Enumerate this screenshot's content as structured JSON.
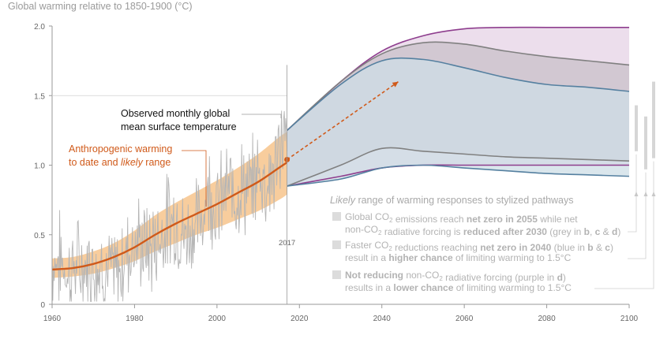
{
  "chart_data": {
    "type": "line",
    "title": "Global warming relative to 1850-1900 (°C)",
    "xlim": [
      1960,
      2100
    ],
    "ylim": [
      0,
      2.0
    ],
    "x_ticks": [
      1960,
      1980,
      2000,
      2020,
      2040,
      2060,
      2080,
      2100
    ],
    "y_ticks": [
      0,
      0.5,
      1.0,
      1.5,
      2.0
    ],
    "y_tick_labels": [
      "0",
      "0.5",
      "1.0",
      "1.5",
      "2.0"
    ],
    "grid": false,
    "reference_year": {
      "x": 2017,
      "label": "2017"
    },
    "observed_monthly": {
      "name": "Observed monthly global mean surface temperature",
      "color": "#b5b5b5",
      "x": [
        1960,
        1962,
        1964,
        1966,
        1968,
        1970,
        1972,
        1974,
        1976,
        1978,
        1980,
        1982,
        1984,
        1986,
        1988,
        1990,
        1992,
        1994,
        1996,
        1998,
        2000,
        2002,
        2004,
        2006,
        2008,
        2010,
        2012,
        2014,
        2016,
        2017
      ],
      "y": [
        0.3,
        0.32,
        0.22,
        0.28,
        0.25,
        0.3,
        0.28,
        0.22,
        0.2,
        0.38,
        0.45,
        0.42,
        0.4,
        0.48,
        0.6,
        0.62,
        0.48,
        0.55,
        0.6,
        0.85,
        0.68,
        0.82,
        0.8,
        0.85,
        0.8,
        0.95,
        0.88,
        0.95,
        1.22,
        1.1
      ]
    },
    "anthropogenic": {
      "name": "Anthropogenic warming to date and likely range",
      "color": "#d05a1a",
      "band_color": "#f7c48c",
      "x": [
        1960,
        1965,
        1970,
        1975,
        1980,
        1985,
        1990,
        1995,
        2000,
        2005,
        2010,
        2015,
        2017
      ],
      "y": [
        0.25,
        0.26,
        0.29,
        0.34,
        0.41,
        0.5,
        0.58,
        0.65,
        0.72,
        0.8,
        0.88,
        0.98,
        1.02
      ],
      "low": [
        0.19,
        0.2,
        0.22,
        0.26,
        0.31,
        0.38,
        0.44,
        0.5,
        0.55,
        0.61,
        0.67,
        0.75,
        0.79
      ],
      "high": [
        0.33,
        0.34,
        0.38,
        0.44,
        0.53,
        0.64,
        0.73,
        0.81,
        0.89,
        0.98,
        1.08,
        1.2,
        1.24
      ]
    },
    "extrapolation": {
      "x": [
        2017,
        2044
      ],
      "y": [
        1.04,
        1.6
      ],
      "color": "#d05a1a"
    },
    "pathways": [
      {
        "color": "#8e3e8e",
        "fill": "#e6d3e6",
        "x": [
          2017,
          2030,
          2040,
          2050,
          2060,
          2070,
          2080,
          2090,
          2100
        ],
        "low": [
          0.85,
          0.92,
          0.98,
          1.0,
          1.0,
          1.0,
          1.0,
          1.0,
          1.0
        ],
        "high": [
          1.25,
          1.6,
          1.82,
          1.93,
          1.98,
          1.99,
          1.99,
          1.99,
          1.99
        ]
      },
      {
        "color": "#808080",
        "fill": "#c9c0ca",
        "x": [
          2017,
          2030,
          2040,
          2050,
          2060,
          2070,
          2080,
          2090,
          2100
        ],
        "low": [
          0.85,
          1.0,
          1.12,
          1.1,
          1.08,
          1.06,
          1.05,
          1.04,
          1.03
        ],
        "high": [
          1.25,
          1.6,
          1.8,
          1.88,
          1.87,
          1.82,
          1.78,
          1.75,
          1.72
        ]
      },
      {
        "color": "#5580a0",
        "fill": "#cddde6",
        "x": [
          2017,
          2030,
          2040,
          2050,
          2060,
          2070,
          2080,
          2090,
          2100
        ],
        "low": [
          0.85,
          0.9,
          0.98,
          1.0,
          0.98,
          0.96,
          0.94,
          0.93,
          0.92
        ],
        "high": [
          1.25,
          1.58,
          1.75,
          1.76,
          1.7,
          1.63,
          1.58,
          1.56,
          1.53
        ]
      }
    ],
    "right_bars": [
      {
        "low": 1.1,
        "high": 1.43
      },
      {
        "low": 0.97,
        "high": 1.35
      },
      {
        "low": 1.05,
        "high": 1.6
      }
    ],
    "annotations": {
      "observed": [
        "Observed monthly global",
        "mean surface temperature"
      ],
      "anthropogenic": [
        "Anthropogenic warming",
        "to date and ",
        "likely",
        " range"
      ],
      "legend_title_italic": "Likely",
      "legend_title_rest": " range of warming responses to stylized pathways",
      "legend_items": [
        {
          "swatch": "#dcdcdc",
          "line1": [
            [
              "Global CO",
              ""
            ],
            [
              "2",
              "sub"
            ],
            [
              " emissions reach ",
              ""
            ],
            [
              "net zero in 2055",
              "bold"
            ],
            [
              " while net",
              ""
            ]
          ],
          "line2": [
            [
              "non-CO",
              ""
            ],
            [
              "2",
              "sub"
            ],
            [
              " radiative forcing is ",
              ""
            ],
            [
              "reduced after 2030",
              "bold"
            ],
            [
              " (grey in ",
              ""
            ],
            [
              "b",
              "bold"
            ],
            [
              ", ",
              ""
            ],
            [
              "c",
              "bold"
            ],
            [
              " & ",
              ""
            ],
            [
              "d",
              "bold"
            ],
            [
              ")",
              ""
            ]
          ]
        },
        {
          "swatch": "#dcdcdc",
          "line1": [
            [
              "Faster CO",
              ""
            ],
            [
              "2",
              "sub"
            ],
            [
              " reductions reaching ",
              ""
            ],
            [
              "net zero in 2040",
              "bold"
            ],
            [
              " (blue in ",
              ""
            ],
            [
              "b",
              "bold"
            ],
            [
              " & ",
              ""
            ],
            [
              "c",
              "bold"
            ],
            [
              ")",
              ""
            ]
          ],
          "line2": [
            [
              "result in a ",
              ""
            ],
            [
              "higher chance",
              "bold"
            ],
            [
              " of limiting warming to 1.5°C",
              ""
            ]
          ]
        },
        {
          "swatch": "#dcdcdc",
          "line1": [
            [
              "Not reducing",
              "bold"
            ],
            [
              " non-CO",
              ""
            ],
            [
              "2",
              "sub"
            ],
            [
              " radiative forcing (purple in ",
              ""
            ],
            [
              "d",
              "bold"
            ],
            [
              ")",
              ""
            ]
          ],
          "line2": [
            [
              "results in a ",
              ""
            ],
            [
              "lower chance",
              "bold"
            ],
            [
              " of limiting warming to 1.5°C",
              ""
            ]
          ]
        }
      ]
    }
  }
}
